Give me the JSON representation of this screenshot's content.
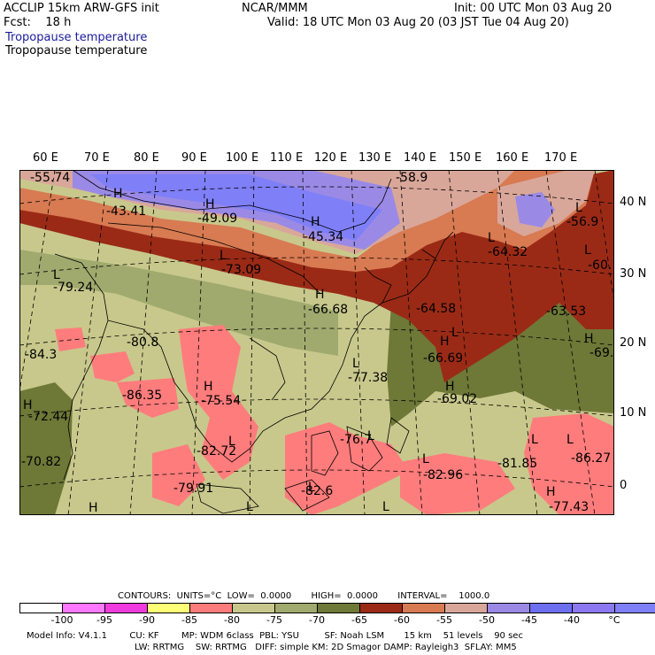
{
  "header": {
    "line1_left": "ACCLIP 15km ARW-GFS init",
    "line1_mid": "NCAR/MMM",
    "line1_right": "Init: 00 UTC Mon 03 Aug 20",
    "line2_left": "Fcst:    18 h",
    "line2_right": "Valid: 18 UTC Mon 03 Aug 20 (03 JST Tue 04 Aug 20)",
    "field_title_1": "Tropopause temperature",
    "field_title_2": "Tropopause temperature"
  },
  "axes": {
    "lon_labels": [
      "60 E",
      "70 E",
      "80 E",
      "90 E",
      "100 E",
      "110 E",
      "120 E",
      "130 E",
      "140 E",
      "150 E",
      "160 E",
      "170 E"
    ],
    "lat_labels": [
      "40 N",
      "30 N",
      "20 N",
      "10 N",
      "0"
    ]
  },
  "map_labels": [
    {
      "text": "-55.74"
    },
    {
      "text": "-58.9"
    },
    {
      "text": "H"
    },
    {
      "text": "-43.41"
    },
    {
      "text": "H"
    },
    {
      "text": "-49.09"
    },
    {
      "text": "H"
    },
    {
      "text": "-45.34"
    },
    {
      "text": "L"
    },
    {
      "text": "-56.9"
    },
    {
      "text": "L"
    },
    {
      "text": "-64.32"
    },
    {
      "text": "L"
    },
    {
      "text": "-60."
    },
    {
      "text": "L"
    },
    {
      "text": "-73.09"
    },
    {
      "text": "L"
    },
    {
      "text": "-79.24"
    },
    {
      "text": "H"
    },
    {
      "text": "-66.68"
    },
    {
      "text": "-64.58"
    },
    {
      "text": "-63.53"
    },
    {
      "text": "L"
    },
    {
      "text": "-80.8"
    },
    {
      "text": "H"
    },
    {
      "text": "-69."
    },
    {
      "text": "-84.3"
    },
    {
      "text": "H"
    },
    {
      "text": "-66.69"
    },
    {
      "text": "L"
    },
    {
      "text": "-77.38"
    },
    {
      "text": "H"
    },
    {
      "text": "-69.02"
    },
    {
      "text": "-86.35"
    },
    {
      "text": "H"
    },
    {
      "text": "-75.54"
    },
    {
      "text": "H"
    },
    {
      "text": "-72.44"
    },
    {
      "text": "L"
    },
    {
      "text": "-82.72"
    },
    {
      "text": "L"
    },
    {
      "text": "-76.7"
    },
    {
      "text": "L"
    },
    {
      "text": "-81.85"
    },
    {
      "text": "L"
    },
    {
      "text": "-86.27"
    },
    {
      "text": "-70.82"
    },
    {
      "text": "L"
    },
    {
      "text": "-82.96"
    },
    {
      "text": "-79.91"
    },
    {
      "text": "L"
    },
    {
      "text": "-82.6"
    },
    {
      "text": "H"
    },
    {
      "text": "-77.43"
    },
    {
      "text": "H"
    },
    {
      "text": "L"
    },
    {
      "text": "L"
    }
  ],
  "colorbar": {
    "colors": [
      "#ffffff",
      "#ff78ff",
      "#f03cdc",
      "#ffff78",
      "#ff7c7c",
      "#c8c88c",
      "#a0aa6e",
      "#6e7837",
      "#9a2a16",
      "#d87a52",
      "#d9a79a",
      "#9a8ae6",
      "#6e6ef0",
      "#8c78f0",
      "#7f7ff8"
    ],
    "ticks": [
      "-100",
      "-95",
      "-90",
      "-85",
      "-80",
      "-75",
      "-70",
      "-65",
      "-60",
      "-55",
      "-50",
      "-45",
      "-40",
      "°C"
    ],
    "contours_line": "CONTOURS:  UNITS=°C  LOW=  0.0000       HIGH=  0.0000       INTERVAL=    1000.0"
  },
  "footer": {
    "line1": "Model Info: V4.1.1        CU: KF        MP: WDM 6class  PBL: YSU         SF: Noah LSM       15 km    51 levels    90 sec",
    "line2": "LW: RRTMG    SW: RRTMG   DIFF: simple KM: 2D Smagor DAMP: Rayleigh3  SFLAY: MM5"
  }
}
